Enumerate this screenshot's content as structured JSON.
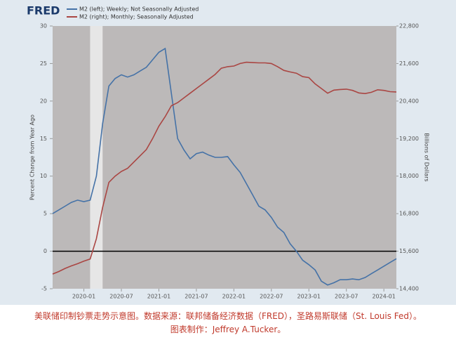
{
  "chart_data": {
    "type": "line",
    "source_logo": "FRED",
    "x": [
      "2019-08",
      "2019-09",
      "2019-10",
      "2019-11",
      "2019-12",
      "2020-01",
      "2020-02",
      "2020-03",
      "2020-04",
      "2020-05",
      "2020-06",
      "2020-07",
      "2020-08",
      "2020-09",
      "2020-10",
      "2020-11",
      "2020-12",
      "2021-01",
      "2021-02",
      "2021-03",
      "2021-04",
      "2021-05",
      "2021-06",
      "2021-07",
      "2021-08",
      "2021-09",
      "2021-10",
      "2021-11",
      "2021-12",
      "2022-01",
      "2022-02",
      "2022-03",
      "2022-04",
      "2022-05",
      "2022-06",
      "2022-07",
      "2022-08",
      "2022-09",
      "2022-10",
      "2022-11",
      "2022-12",
      "2023-01",
      "2023-02",
      "2023-03",
      "2023-04",
      "2023-05",
      "2023-06",
      "2023-07",
      "2023-08",
      "2023-09",
      "2023-10",
      "2023-11",
      "2023-12",
      "2024-01",
      "2024-02",
      "2024-03"
    ],
    "series": [
      {
        "name": "M2 (left); Weekly; Not Seasonally Adjusted",
        "color": "#4572a7",
        "values": [
          5.0,
          5.5,
          6.0,
          6.5,
          6.8,
          6.6,
          6.8,
          10.0,
          17.0,
          22.0,
          23.0,
          23.5,
          23.2,
          23.5,
          24.0,
          24.5,
          25.5,
          26.5,
          27.0,
          21.0,
          15.0,
          13.5,
          12.3,
          13.0,
          13.2,
          12.8,
          12.5,
          12.5,
          12.6,
          11.5,
          10.5,
          9.0,
          7.5,
          6.0,
          5.5,
          4.5,
          3.2,
          2.5,
          1.0,
          0.0,
          -1.2,
          -1.8,
          -2.5,
          -4.0,
          -4.5,
          -4.2,
          -3.8,
          -3.8,
          -3.7,
          -3.8,
          -3.5,
          -3.0,
          -2.5,
          -2.0,
          -1.5,
          -1.0
        ]
      },
      {
        "name": "M2 (right); Monthly; Seasonally Adjusted",
        "color": "#aa4643",
        "axis": "y2",
        "values": [
          14870,
          14950,
          15050,
          15130,
          15200,
          15280,
          15350,
          16000,
          17000,
          17800,
          18000,
          18150,
          18250,
          18450,
          18650,
          18850,
          19200,
          19600,
          19900,
          20250,
          20350,
          20500,
          20650,
          20800,
          20950,
          21100,
          21250,
          21450,
          21500,
          21520,
          21600,
          21640,
          21630,
          21620,
          21620,
          21600,
          21500,
          21380,
          21330,
          21290,
          21180,
          21150,
          20950,
          20800,
          20650,
          20750,
          20770,
          20780,
          20740,
          20660,
          20640,
          20680,
          20760,
          20740,
          20700,
          20690
        ]
      }
    ],
    "shaded_periods": [
      [
        "2020-02",
        "2020-04"
      ]
    ],
    "xlim": [
      "2019-08",
      "2024-03"
    ],
    "xticks": [
      "2020-01",
      "2020-07",
      "2021-01",
      "2021-07",
      "2022-01",
      "2022-07",
      "2023-01",
      "2023-07",
      "2024-01"
    ],
    "ylim": [
      -5,
      30
    ],
    "yticks": [
      -5,
      0,
      5,
      10,
      15,
      20,
      25,
      30
    ],
    "y2lim": [
      14400,
      22800
    ],
    "y2ticks": [
      {
        "value": 14400,
        "label": "14,400"
      },
      {
        "value": 15600,
        "label": "15,600"
      },
      {
        "value": 16800,
        "label": "16,800"
      },
      {
        "value": 18000,
        "label": "18,000"
      },
      {
        "value": 19200,
        "label": "19,200"
      },
      {
        "value": 20400,
        "label": "20,400"
      },
      {
        "value": 21600,
        "label": "21,600"
      },
      {
        "value": 22800,
        "label": "22,800"
      }
    ],
    "ylabel": "Percent Change from Year Ago",
    "y2label": "Billions of Dollars"
  },
  "caption": [
    "美联储印制钞票走势示意图。数据来源：联邦储备经济数据（FRED），圣路易斯联储（St. Louis Fed）。",
    "图表制作：Jeffrey A.Tucker。"
  ]
}
